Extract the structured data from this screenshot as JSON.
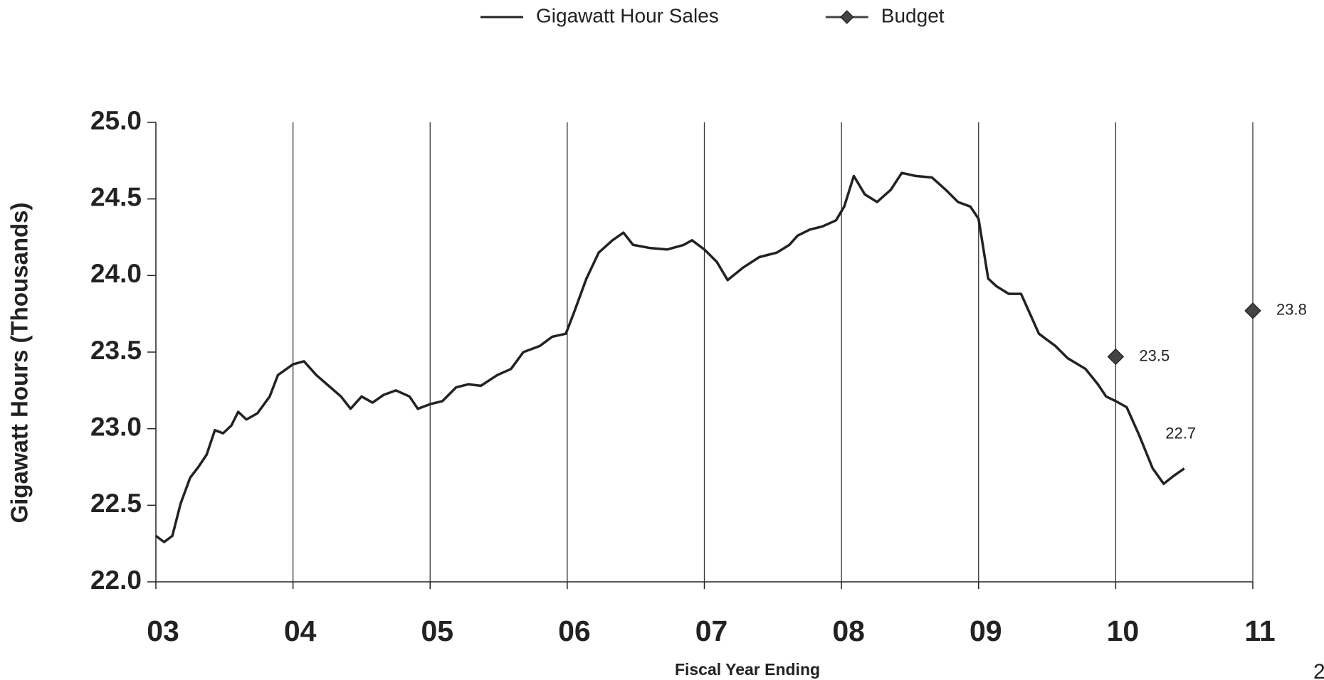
{
  "chart_data": {
    "type": "line",
    "xlabel": "Fiscal Year Ending",
    "ylabel": "Gigawatt Hours (Thousands)",
    "page_number": "2",
    "xlim": [
      3,
      11
    ],
    "xticks": [
      {
        "value": 3,
        "label": "03"
      },
      {
        "value": 4,
        "label": "04"
      },
      {
        "value": 5,
        "label": "05"
      },
      {
        "value": 6,
        "label": "06"
      },
      {
        "value": 7,
        "label": "07"
      },
      {
        "value": 8,
        "label": "08"
      },
      {
        "value": 9,
        "label": "09"
      },
      10,
      11
    ],
    "ylim": [
      22,
      25
    ],
    "yticks": [
      {
        "value": 22,
        "label": "22.0"
      },
      22.5,
      {
        "value": 23,
        "label": "23.0"
      },
      23.5,
      {
        "value": 24,
        "label": "24.0"
      },
      24.5,
      {
        "value": 25,
        "label": "25.0"
      }
    ],
    "grid": "x",
    "legend": "top",
    "series": [
      {
        "name": "Gigawatt Hour Sales",
        "color": "#222222",
        "marker": "none",
        "x": [
          3.0,
          3.06,
          3.12,
          3.18,
          3.25,
          3.31,
          3.37,
          3.43,
          3.49,
          3.55,
          3.6,
          3.66,
          3.74,
          3.83,
          3.89,
          4.0,
          4.08,
          4.17,
          4.26,
          4.35,
          4.42,
          4.5,
          4.58,
          4.66,
          4.75,
          4.85,
          4.91,
          5.0,
          5.09,
          5.19,
          5.28,
          5.37,
          5.49,
          5.59,
          5.68,
          5.8,
          5.89,
          5.99,
          6.05,
          6.14,
          6.23,
          6.33,
          6.41,
          6.48,
          6.6,
          6.73,
          6.85,
          6.91,
          7.0,
          7.09,
          7.17,
          7.28,
          7.4,
          7.53,
          7.62,
          7.68,
          7.77,
          7.86,
          7.96,
          8.02,
          8.09,
          8.17,
          8.26,
          8.36,
          8.44,
          8.54,
          8.66,
          8.76,
          8.85,
          8.94,
          9.0,
          9.07,
          9.13,
          9.22,
          9.31,
          9.37,
          9.44,
          9.56,
          9.65,
          9.78,
          9.87,
          9.93,
          10.0,
          10.08,
          10.17,
          10.27,
          10.35,
          10.42,
          10.5
        ],
        "values": [
          22.3,
          22.26,
          22.3,
          22.51,
          22.68,
          22.75,
          22.83,
          22.99,
          22.97,
          23.02,
          23.11,
          23.06,
          23.1,
          23.21,
          23.35,
          23.42,
          23.44,
          23.35,
          23.28,
          23.21,
          23.13,
          23.21,
          23.17,
          23.22,
          23.25,
          23.21,
          23.13,
          23.16,
          23.18,
          23.27,
          23.29,
          23.28,
          23.35,
          23.39,
          23.5,
          23.54,
          23.6,
          23.62,
          23.76,
          23.98,
          24.15,
          24.23,
          24.28,
          24.2,
          24.18,
          24.17,
          24.2,
          24.23,
          24.17,
          24.09,
          23.97,
          24.05,
          24.12,
          24.15,
          24.2,
          24.26,
          24.3,
          24.32,
          24.36,
          24.45,
          24.65,
          24.53,
          24.48,
          24.56,
          24.67,
          24.65,
          24.64,
          24.56,
          24.48,
          24.45,
          24.37,
          23.98,
          23.93,
          23.88,
          23.88,
          23.76,
          23.62,
          23.54,
          23.46,
          23.39,
          23.29,
          23.21,
          23.18,
          23.14,
          22.96,
          22.74,
          22.64,
          22.69,
          22.74
        ],
        "value_labels": [
          null,
          null,
          null,
          null,
          null,
          null,
          null,
          null,
          null,
          null,
          null,
          null,
          null,
          null,
          null,
          null,
          null,
          null,
          null,
          null,
          null,
          null,
          null,
          null,
          null,
          null,
          null,
          null,
          null,
          null,
          null,
          null,
          null,
          null,
          null,
          null,
          null,
          null,
          null,
          null,
          null,
          null,
          null,
          null,
          null,
          null,
          null,
          null,
          null,
          null,
          null,
          null,
          null,
          null,
          null,
          null,
          null,
          null,
          null,
          null,
          null,
          null,
          null,
          null,
          null,
          null,
          null,
          null,
          null,
          null,
          null,
          null,
          null,
          null,
          null,
          null,
          null,
          null,
          null,
          null,
          null,
          null,
          null,
          null,
          null,
          null,
          null,
          null,
          "22.7"
        ]
      },
      {
        "name": "Budget",
        "color": "#444444",
        "marker": "diamond",
        "x": [
          10,
          11
        ],
        "values": [
          23.47,
          23.77
        ],
        "value_labels": [
          "23.5",
          "23.8"
        ]
      }
    ]
  }
}
